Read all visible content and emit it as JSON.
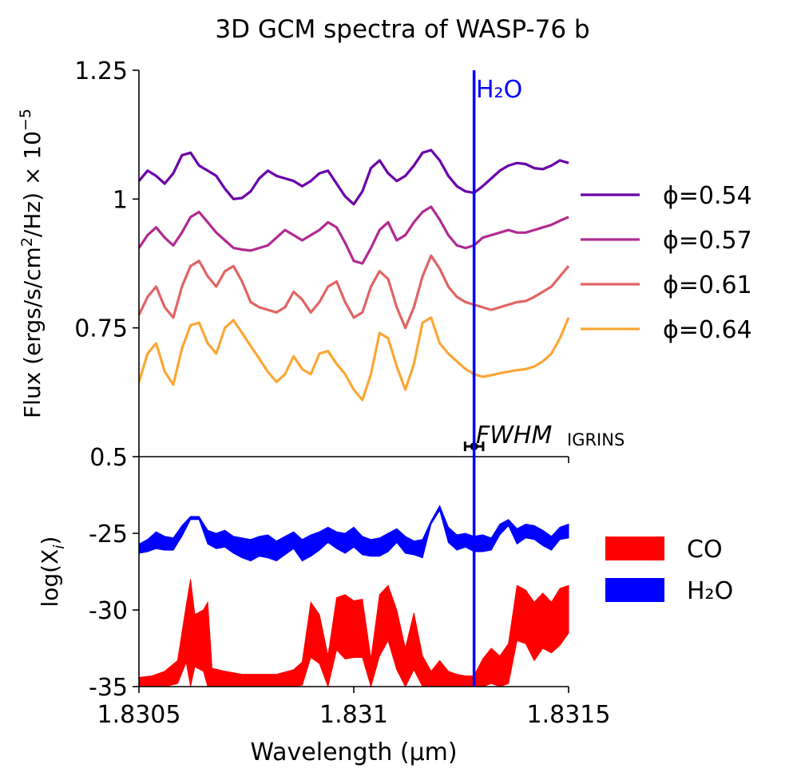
{
  "figure": {
    "title": "3D GCM spectra of WASP-76 b",
    "line_label": "H₂O",
    "fwhm_label": "FWHM",
    "fwhm_subscript": "IGRINS"
  },
  "chart_data": [
    {
      "type": "line",
      "title": "3D GCM spectra of WASP-76 b",
      "xlabel": "",
      "ylabel": "Flux (ergs/s/cm²/Hz) × 10⁻⁵",
      "xlim": [
        1.8305,
        1.8315
      ],
      "ylim": [
        0.5,
        1.25
      ],
      "yticks": [
        0.5,
        0.75,
        1.0,
        1.25
      ],
      "ytick_labels": [
        "0.5",
        "0.75",
        "1",
        "1.25"
      ],
      "legend_position": "right",
      "x": [
        1.8305,
        1.83052,
        1.83054,
        1.83056,
        1.83058,
        1.8306,
        1.83062,
        1.83064,
        1.83066,
        1.83068,
        1.8307,
        1.83072,
        1.83074,
        1.83076,
        1.83078,
        1.8308,
        1.83082,
        1.83084,
        1.83086,
        1.83088,
        1.8309,
        1.83092,
        1.83094,
        1.83096,
        1.83098,
        1.831,
        1.83102,
        1.83104,
        1.83106,
        1.83108,
        1.8311,
        1.83112,
        1.83114,
        1.83116,
        1.83118,
        1.8312,
        1.83122,
        1.83124,
        1.83126,
        1.83128,
        1.8313,
        1.83132,
        1.83134,
        1.83136,
        1.83138,
        1.8314,
        1.83142,
        1.83144,
        1.83146,
        1.83148,
        1.8315
      ],
      "series": [
        {
          "name": "ϕ=0.54",
          "color": "#6a00a8",
          "values": [
            1.035,
            1.055,
            1.045,
            1.03,
            1.05,
            1.085,
            1.09,
            1.065,
            1.055,
            1.045,
            1.02,
            1.0,
            1.002,
            1.015,
            1.04,
            1.055,
            1.045,
            1.04,
            1.035,
            1.025,
            1.035,
            1.05,
            1.055,
            1.03,
            1.005,
            0.99,
            1.015,
            1.06,
            1.075,
            1.05,
            1.035,
            1.045,
            1.065,
            1.09,
            1.095,
            1.075,
            1.045,
            1.025,
            1.015,
            1.012,
            1.025,
            1.04,
            1.055,
            1.065,
            1.07,
            1.068,
            1.06,
            1.058,
            1.065,
            1.075,
            1.07
          ]
        },
        {
          "name": "ϕ=0.57",
          "color": "#b12a90",
          "values": [
            0.905,
            0.93,
            0.945,
            0.925,
            0.91,
            0.935,
            0.965,
            0.975,
            0.955,
            0.935,
            0.92,
            0.905,
            0.902,
            0.9,
            0.905,
            0.91,
            0.925,
            0.94,
            0.93,
            0.92,
            0.93,
            0.94,
            0.955,
            0.945,
            0.915,
            0.88,
            0.875,
            0.905,
            0.94,
            0.955,
            0.92,
            0.93,
            0.955,
            0.975,
            0.985,
            0.96,
            0.93,
            0.91,
            0.905,
            0.91,
            0.925,
            0.93,
            0.935,
            0.94,
            0.935,
            0.935,
            0.94,
            0.945,
            0.95,
            0.958,
            0.965
          ]
        },
        {
          "name": "ϕ=0.61",
          "color": "#e16462",
          "values": [
            0.775,
            0.81,
            0.83,
            0.79,
            0.77,
            0.83,
            0.87,
            0.88,
            0.85,
            0.83,
            0.86,
            0.87,
            0.84,
            0.8,
            0.79,
            0.785,
            0.78,
            0.79,
            0.82,
            0.805,
            0.78,
            0.8,
            0.83,
            0.84,
            0.8,
            0.77,
            0.78,
            0.83,
            0.86,
            0.845,
            0.79,
            0.75,
            0.79,
            0.85,
            0.89,
            0.865,
            0.83,
            0.81,
            0.8,
            0.795,
            0.79,
            0.785,
            0.79,
            0.795,
            0.8,
            0.802,
            0.81,
            0.82,
            0.83,
            0.85,
            0.87
          ]
        },
        {
          "name": "ϕ=0.64",
          "color": "#fca636",
          "values": [
            0.645,
            0.7,
            0.72,
            0.665,
            0.64,
            0.71,
            0.755,
            0.76,
            0.72,
            0.7,
            0.75,
            0.765,
            0.74,
            0.715,
            0.69,
            0.665,
            0.645,
            0.66,
            0.695,
            0.67,
            0.66,
            0.7,
            0.705,
            0.68,
            0.66,
            0.63,
            0.61,
            0.66,
            0.74,
            0.73,
            0.675,
            0.63,
            0.68,
            0.76,
            0.77,
            0.72,
            0.7,
            0.685,
            0.67,
            0.66,
            0.655,
            0.658,
            0.662,
            0.665,
            0.668,
            0.67,
            0.675,
            0.685,
            0.7,
            0.73,
            0.77
          ]
        }
      ],
      "annotations": [
        {
          "text": "H₂O",
          "x": 1.83128,
          "color": "#0000ff",
          "kind": "vertical-line"
        },
        {
          "text": "FWHM IGRINS",
          "x": 1.83128,
          "y": 0.52,
          "xerr": 2.1e-05,
          "kind": "errorbar"
        }
      ]
    },
    {
      "type": "area",
      "xlabel": "Wavelength (µm)",
      "ylabel": "log(Xᵢ)",
      "xlim": [
        1.8305,
        1.8315
      ],
      "ylim": [
        -35,
        -20
      ],
      "yticks": [
        -35,
        -30,
        -25
      ],
      "ytick_labels": [
        "-35",
        "-30",
        "-25"
      ],
      "xticks": [
        1.8305,
        1.831,
        1.8315
      ],
      "xtick_labels": [
        "1.8305",
        "1.831",
        "1.8315"
      ],
      "legend_position": "right",
      "series": [
        {
          "name": "CO",
          "color": "#ff0000",
          "x": [
            1.8305,
            1.83053,
            1.83056,
            1.83059,
            1.83061,
            1.83062,
            1.83063,
            1.83065,
            1.83066,
            1.83067,
            1.8307,
            1.83074,
            1.83078,
            1.83082,
            1.83086,
            1.83088,
            1.8309,
            1.83092,
            1.83094,
            1.83096,
            1.83098,
            1.831,
            1.83102,
            1.83104,
            1.83106,
            1.83108,
            1.8311,
            1.83112,
            1.83114,
            1.83116,
            1.83118,
            1.8312,
            1.83122,
            1.83124,
            1.83126,
            1.83128,
            1.8313,
            1.83132,
            1.83134,
            1.83136,
            1.83138,
            1.8314,
            1.83142,
            1.83144,
            1.83146,
            1.83148,
            1.8315
          ],
          "upper": [
            -34.4,
            -34.3,
            -34.0,
            -33.3,
            -29.7,
            -28.0,
            -30.3,
            -30.0,
            -29.5,
            -33.8,
            -34.0,
            -34.2,
            -34.2,
            -34.2,
            -33.9,
            -33.4,
            -29.5,
            -30.3,
            -33.0,
            -29.2,
            -29.0,
            -29.4,
            -29.3,
            -33.2,
            -29.0,
            -28.4,
            -30.0,
            -32.5,
            -30.2,
            -33.0,
            -34.0,
            -33.3,
            -34.0,
            -34.2,
            -34.3,
            -34.3,
            -33.2,
            -32.5,
            -33.0,
            -32.2,
            -28.4,
            -28.7,
            -29.5,
            -28.9,
            -29.5,
            -28.6,
            -28.4
          ],
          "lower": [
            -35.0,
            -35.0,
            -35.0,
            -34.8,
            -33.4,
            -35.0,
            -33.7,
            -34.0,
            -35.0,
            -35.0,
            -35.0,
            -35.0,
            -35.0,
            -35.0,
            -35.0,
            -34.9,
            -33.1,
            -33.5,
            -35.0,
            -32.6,
            -33.2,
            -33.1,
            -33.1,
            -35.0,
            -33.0,
            -32.0,
            -33.9,
            -35.0,
            -33.9,
            -35.0,
            -35.0,
            -35.0,
            -35.0,
            -35.0,
            -35.0,
            -35.0,
            -35.0,
            -34.8,
            -35.0,
            -34.8,
            -32.0,
            -32.2,
            -33.3,
            -32.5,
            -32.8,
            -32.3,
            -31.5
          ]
        },
        {
          "name": "H₂O",
          "color": "#0000ff",
          "x": [
            1.8305,
            1.83052,
            1.83054,
            1.83056,
            1.83058,
            1.8306,
            1.83062,
            1.83064,
            1.83066,
            1.83068,
            1.8307,
            1.83072,
            1.83074,
            1.83076,
            1.83078,
            1.8308,
            1.83082,
            1.83084,
            1.83086,
            1.83088,
            1.8309,
            1.83092,
            1.83094,
            1.83096,
            1.83098,
            1.831,
            1.83102,
            1.83104,
            1.83106,
            1.83108,
            1.8311,
            1.83112,
            1.83114,
            1.83116,
            1.83118,
            1.8312,
            1.83122,
            1.83124,
            1.83126,
            1.83128,
            1.8313,
            1.83132,
            1.83134,
            1.83136,
            1.83138,
            1.8314,
            1.83142,
            1.83144,
            1.83146,
            1.83148,
            1.8315
          ],
          "upper": [
            -25.7,
            -25.4,
            -24.9,
            -25.2,
            -25.3,
            -24.5,
            -23.9,
            -23.9,
            -24.8,
            -25.0,
            -24.8,
            -25.2,
            -25.3,
            -25.4,
            -25.2,
            -25.1,
            -25.5,
            -25.2,
            -24.9,
            -25.4,
            -25.1,
            -24.9,
            -24.6,
            -24.9,
            -25.0,
            -24.6,
            -25.2,
            -25.4,
            -25.3,
            -25.0,
            -24.7,
            -25.2,
            -25.5,
            -25.4,
            -24.2,
            -23.2,
            -24.6,
            -25.1,
            -25.0,
            -25.2,
            -25.1,
            -25.3,
            -24.4,
            -24.1,
            -24.7,
            -24.4,
            -24.5,
            -24.8,
            -25.2,
            -24.6,
            -24.4
          ],
          "lower": [
            -26.3,
            -26.2,
            -26.0,
            -26.1,
            -26.1,
            -25.2,
            -24.1,
            -24.1,
            -25.7,
            -26.0,
            -25.9,
            -26.3,
            -26.6,
            -26.8,
            -26.5,
            -26.6,
            -26.8,
            -26.4,
            -26.0,
            -26.8,
            -26.5,
            -26.1,
            -25.6,
            -26.0,
            -26.3,
            -25.9,
            -26.4,
            -26.5,
            -26.5,
            -26.2,
            -25.6,
            -26.3,
            -26.4,
            -26.6,
            -24.4,
            -23.5,
            -25.6,
            -26.1,
            -25.9,
            -26.2,
            -26.2,
            -26.1,
            -25.1,
            -24.5,
            -25.7,
            -25.3,
            -25.4,
            -25.8,
            -26.1,
            -25.4,
            -25.3
          ]
        }
      ]
    }
  ]
}
